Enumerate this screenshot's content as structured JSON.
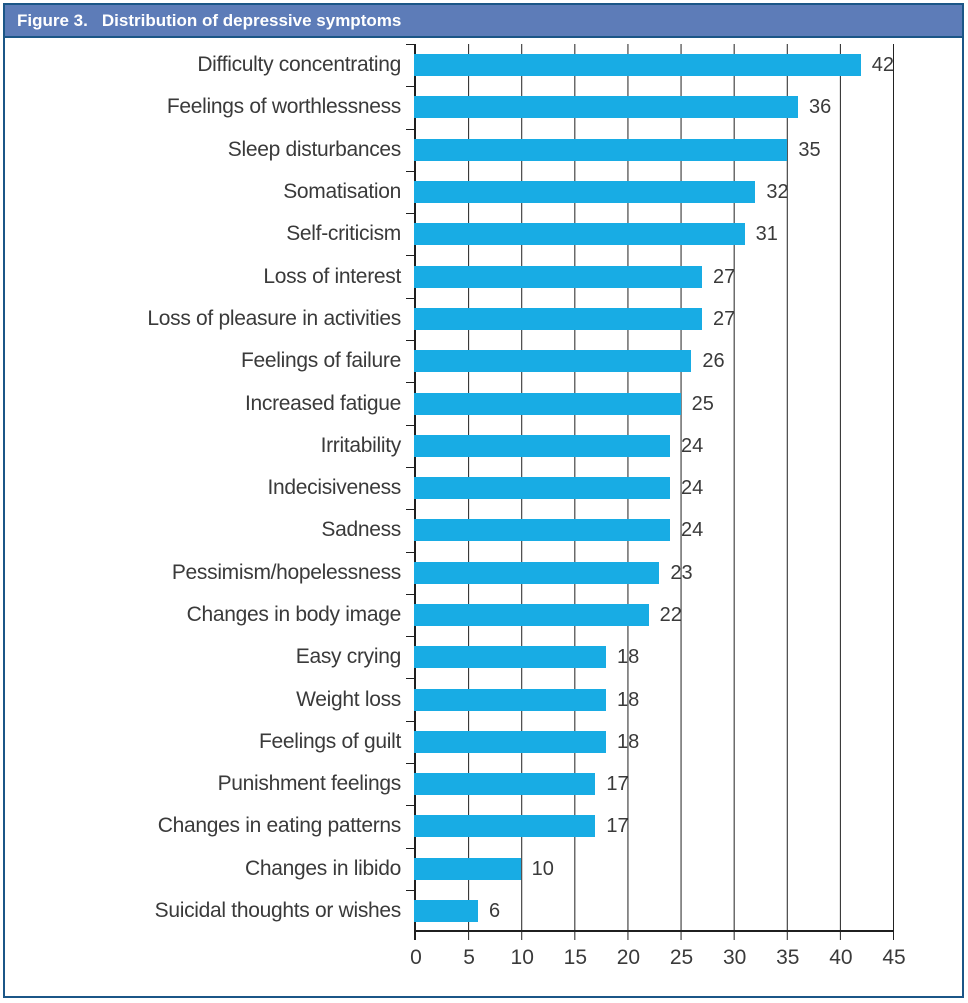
{
  "header": {
    "figure_label": "Figure 3.",
    "title": "Distribution of depressive symptoms"
  },
  "colors": {
    "header_bg": "#5d7cb8",
    "border": "#1b5687",
    "bar": "#18ace4",
    "grid": "#1f1f1f",
    "text": "#3a3a3a",
    "header_text": "#ffffff"
  },
  "chart_data": {
    "type": "bar",
    "orientation": "horizontal",
    "title": "Figure 3. Distribution of depressive symptoms",
    "xlabel": "",
    "ylabel": "",
    "xlim": [
      0,
      45
    ],
    "xticks": [
      0,
      5,
      10,
      15,
      20,
      25,
      30,
      35,
      40,
      45
    ],
    "grid": "vertical gridlines every 5 units, drawn behind bars",
    "legend": "none",
    "value_labels": "shown at end of each bar",
    "categories": [
      "Difficulty concentrating",
      "Feelings of worthlessness",
      "Sleep disturbances",
      "Somatisation",
      "Self-criticism",
      "Loss of interest",
      "Loss of pleasure in activities",
      "Feelings of failure",
      "Increased fatigue",
      "Irritability",
      "Indecisiveness",
      "Sadness",
      "Pessimism/hopelessness",
      "Changes in body image",
      "Easy crying",
      "Weight loss",
      "Feelings of guilt",
      "Punishment feelings",
      "Changes in eating patterns",
      "Changes in libido",
      "Suicidal thoughts or wishes"
    ],
    "values": [
      42,
      36,
      35,
      32,
      31,
      27,
      27,
      26,
      25,
      24,
      24,
      24,
      23,
      22,
      18,
      18,
      18,
      17,
      17,
      10,
      6
    ]
  }
}
